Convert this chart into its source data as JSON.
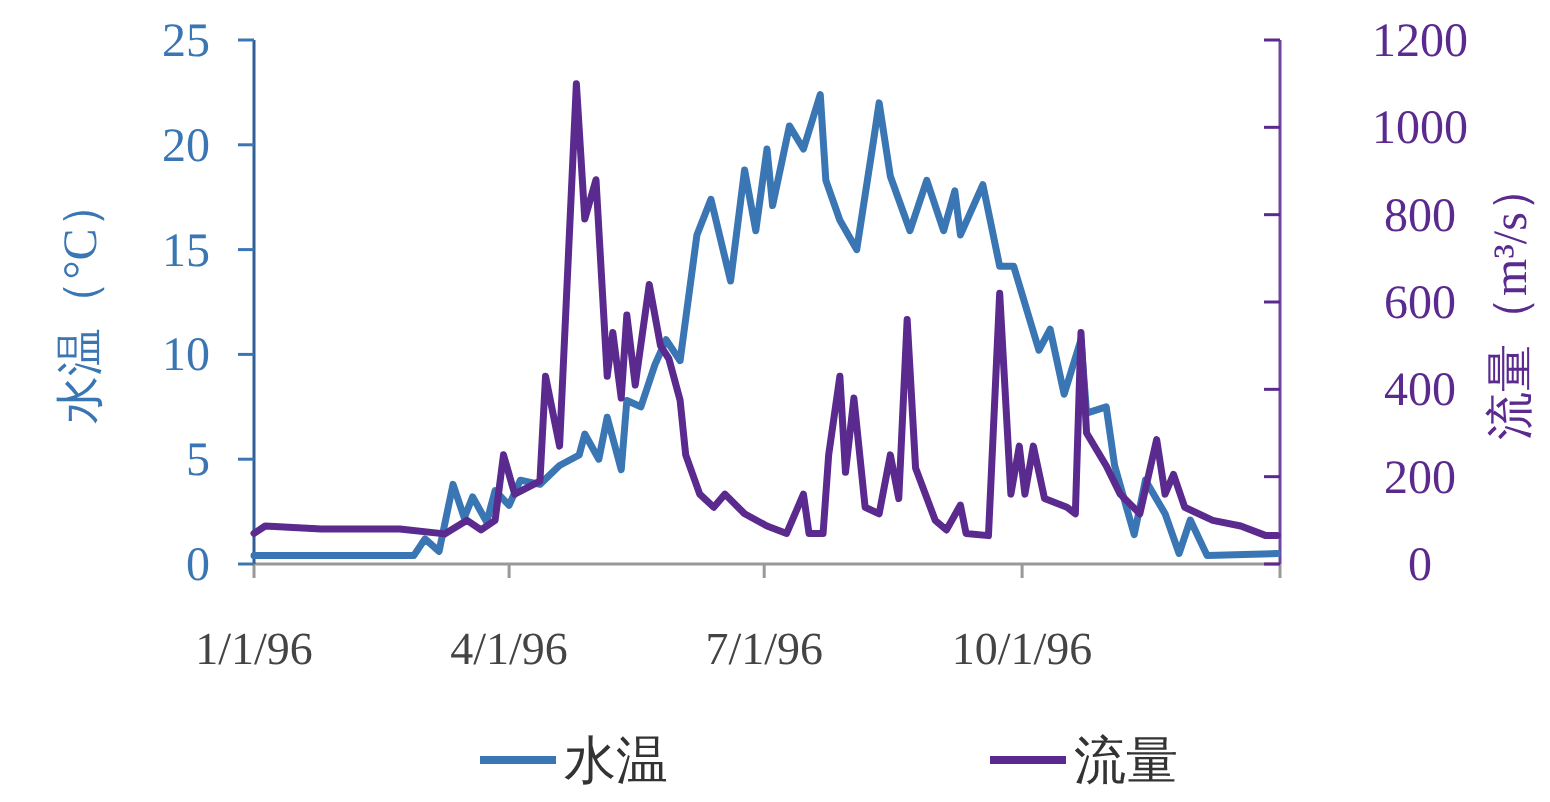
{
  "chart_data": {
    "type": "line",
    "ylabel": "水温（°C）",
    "y2label": "流量（m³/s）",
    "legend": "bottom",
    "xlim": [
      "1996-01-01",
      "1997-01-01"
    ],
    "xticks": [
      {
        "value": "1996-01-01",
        "label": "1/1/96"
      },
      {
        "value": "1996-04-01",
        "label": "4/1/96"
      },
      {
        "value": "1996-07-01",
        "label": "7/1/96"
      },
      {
        "value": "1996-10-01",
        "label": "10/1/96"
      },
      {
        "value": "1997-01-01",
        "label": null
      }
    ],
    "ylim": [
      0,
      25
    ],
    "yticks": [
      0,
      5,
      10,
      15,
      20,
      25
    ],
    "y2lim": [
      0,
      1200
    ],
    "y2ticks": [
      0,
      200,
      400,
      600,
      800,
      1000,
      1200
    ],
    "series": [
      {
        "name": "水温",
        "color": "#3a76b4",
        "x": [
          "1996-01-01",
          "1996-02-08",
          "1996-02-27",
          "1996-03-02",
          "1996-03-07",
          "1996-03-12",
          "1996-03-16",
          "1996-03-19",
          "1996-03-24",
          "1996-03-27",
          "1996-04-01",
          "1996-04-05",
          "1996-04-12",
          "1996-04-19",
          "1996-04-26",
          "1996-04-28",
          "1996-05-03",
          "1996-05-06",
          "1996-05-11",
          "1996-05-13",
          "1996-05-18",
          "1996-05-23",
          "1996-05-27",
          "1996-06-01",
          "1996-06-07",
          "1996-06-12",
          "1996-06-19",
          "1996-06-24",
          "1996-06-28",
          "1996-07-02",
          "1996-07-04",
          "1996-07-10",
          "1996-07-15",
          "1996-07-21",
          "1996-07-23",
          "1996-07-28",
          "1996-08-03",
          "1996-08-09",
          "1996-08-11",
          "1996-08-15",
          "1996-08-22",
          "1996-08-28",
          "1996-09-03",
          "1996-09-07",
          "1996-09-09",
          "1996-09-17",
          "1996-09-23",
          "1996-09-28",
          "1996-10-07",
          "1996-10-11",
          "1996-10-16",
          "1996-10-22",
          "1996-10-24",
          "1996-10-31",
          "1996-11-03",
          "1996-11-10",
          "1996-11-14",
          "1996-11-21",
          "1996-11-26",
          "1996-11-30",
          "1996-12-06",
          "1996-12-31"
        ],
        "values": [
          0.4,
          0.4,
          0.4,
          1.2,
          0.6,
          3.8,
          2.2,
          3.2,
          2.0,
          3.5,
          2.8,
          4.0,
          3.8,
          4.7,
          5.2,
          6.2,
          5.0,
          7.0,
          4.5,
          7.8,
          7.5,
          9.5,
          10.7,
          9.7,
          15.7,
          17.4,
          13.5,
          18.8,
          15.9,
          19.8,
          17.1,
          20.9,
          19.8,
          22.4,
          18.3,
          16.4,
          15.0,
          20.2,
          22.0,
          18.5,
          15.9,
          18.3,
          15.9,
          17.8,
          15.7,
          18.1,
          14.2,
          14.2,
          10.2,
          11.2,
          8.1,
          10.7,
          7.2,
          7.5,
          4.7,
          1.4,
          4.0,
          2.4,
          0.5,
          2.1,
          0.4,
          0.5
        ]
      },
      {
        "name": "流量",
        "color": "#5a2a8e",
        "axis": "y2",
        "x": [
          "1996-01-01",
          "1996-01-05",
          "1996-01-25",
          "1996-02-22",
          "1996-03-09",
          "1996-03-17",
          "1996-03-22",
          "1996-03-27",
          "1996-03-30",
          "1996-04-03",
          "1996-04-12",
          "1996-04-14",
          "1996-04-19",
          "1996-04-25",
          "1996-04-28",
          "1996-05-02",
          "1996-05-06",
          "1996-05-08",
          "1996-05-11",
          "1996-05-13",
          "1996-05-16",
          "1996-05-21",
          "1996-05-25",
          "1996-05-28",
          "1996-06-01",
          "1996-06-03",
          "1996-06-08",
          "1996-06-13",
          "1996-06-17",
          "1996-06-24",
          "1996-07-02",
          "1996-07-09",
          "1996-07-15",
          "1996-07-17",
          "1996-07-22",
          "1996-07-24",
          "1996-07-28",
          "1996-07-30",
          "1996-08-02",
          "1996-08-06",
          "1996-08-11",
          "1996-08-15",
          "1996-08-18",
          "1996-08-21",
          "1996-08-24",
          "1996-08-31",
          "1996-09-04",
          "1996-09-09",
          "1996-09-11",
          "1996-09-19",
          "1996-09-23",
          "1996-09-27",
          "1996-09-30",
          "1996-10-02",
          "1996-10-05",
          "1996-10-09",
          "1996-10-17",
          "1996-10-20",
          "1996-10-22",
          "1996-10-24",
          "1996-10-31",
          "1996-11-05",
          "1996-11-12",
          "1996-11-18",
          "1996-11-21",
          "1996-11-24",
          "1996-11-28",
          "1996-12-08",
          "1996-12-18",
          "1996-12-27",
          "1996-12-31"
        ],
        "values": [
          70,
          87,
          80,
          80,
          69,
          100,
          78,
          100,
          250,
          160,
          190,
          430,
          270,
          1100,
          790,
          880,
          430,
          530,
          380,
          570,
          410,
          640,
          500,
          470,
          375,
          250,
          160,
          130,
          160,
          115,
          87,
          70,
          160,
          70,
          70,
          250,
          430,
          210,
          380,
          130,
          115,
          250,
          150,
          560,
          220,
          100,
          78,
          135,
          70,
          65,
          620,
          160,
          270,
          160,
          270,
          150,
          130,
          115,
          530,
          300,
          225,
          160,
          115,
          285,
          160,
          205,
          130,
          100,
          87,
          65,
          65
        ]
      }
    ]
  }
}
